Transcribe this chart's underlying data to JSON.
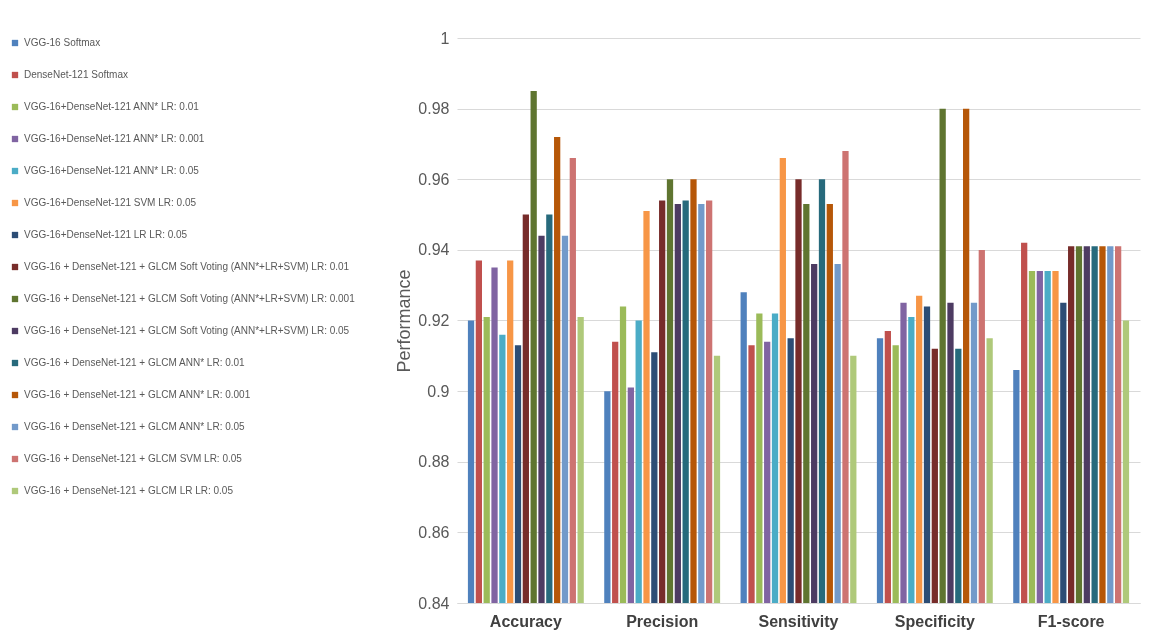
{
  "chart_data": {
    "type": "bar",
    "ylabel": "Performance",
    "categories": [
      "Accuracy",
      "Precision",
      "Sensitivity",
      "Specificity",
      "F1-score"
    ],
    "ylim": [
      0.84,
      1
    ],
    "yticks": [
      0.84,
      0.86,
      0.88,
      0.9,
      0.92,
      0.94,
      0.96,
      0.98,
      1
    ],
    "grid": "y",
    "legend": "left",
    "series": [
      {
        "name": "VGG-16 Softmax",
        "color": "#4f81bd",
        "values": [
          0.92,
          0.9,
          0.928,
          0.915,
          0.906
        ]
      },
      {
        "name": "DenseNet-121 Softmax",
        "color": "#c0504d",
        "values": [
          0.937,
          0.914,
          0.913,
          0.917,
          0.942
        ]
      },
      {
        "name": "VGG-16+DenseNet-121 ANN* LR: 0.01",
        "color": "#9bbb59",
        "values": [
          0.921,
          0.924,
          0.922,
          0.913,
          0.934
        ]
      },
      {
        "name": "VGG-16+DenseNet-121 ANN* LR: 0.001",
        "color": "#8064a2",
        "values": [
          0.935,
          0.901,
          0.914,
          0.925,
          0.934
        ]
      },
      {
        "name": "VGG-16+DenseNet-121 ANN* LR: 0.05",
        "color": "#4bacc6",
        "values": [
          0.916,
          0.92,
          0.922,
          0.921,
          0.934
        ]
      },
      {
        "name": "VGG-16+DenseNet-121 SVM LR: 0.05",
        "color": "#f79646",
        "values": [
          0.937,
          0.951,
          0.966,
          0.927,
          0.934
        ]
      },
      {
        "name": "VGG-16+DenseNet-121 LR LR: 0.05",
        "color": "#2c4d75",
        "values": [
          0.913,
          0.911,
          0.915,
          0.924,
          0.925
        ]
      },
      {
        "name": "VGG-16 + DenseNet-121 + GLCM Soft Voting (ANN*+LR+SVM) LR: 0.01",
        "color": "#772c2a",
        "values": [
          0.95,
          0.954,
          0.96,
          0.912,
          0.941
        ]
      },
      {
        "name": "VGG-16 + DenseNet-121 + GLCM Soft Voting (ANN*+LR+SVM) LR: 0.001",
        "color": "#5f7530",
        "values": [
          0.985,
          0.96,
          0.953,
          0.98,
          0.941
        ]
      },
      {
        "name": "VGG-16 + DenseNet-121 + GLCM Soft Voting (ANN*+LR+SVM) LR: 0.05",
        "color": "#4d3b62",
        "values": [
          0.944,
          0.953,
          0.936,
          0.925,
          0.941
        ]
      },
      {
        "name": "VGG-16 + DenseNet-121 + GLCM ANN* LR: 0.01",
        "color": "#276a7c",
        "values": [
          0.95,
          0.954,
          0.96,
          0.912,
          0.941
        ]
      },
      {
        "name": "VGG-16 + DenseNet-121 + GLCM ANN* LR: 0.001",
        "color": "#b65708",
        "values": [
          0.972,
          0.96,
          0.953,
          0.98,
          0.941
        ]
      },
      {
        "name": "VGG-16 + DenseNet-121 + GLCM ANN* LR: 0.05",
        "color": "#729aca",
        "values": [
          0.944,
          0.953,
          0.936,
          0.925,
          0.941
        ]
      },
      {
        "name": "VGG-16 + DenseNet-121 + GLCM SVM LR: 0.05",
        "color": "#cd7371",
        "values": [
          0.966,
          0.954,
          0.968,
          0.94,
          0.941
        ]
      },
      {
        "name": "VGG-16 + DenseNet-121 + GLCM LR LR: 0.05",
        "color": "#afc97a",
        "values": [
          0.921,
          0.91,
          0.91,
          0.915,
          0.92
        ]
      }
    ]
  }
}
